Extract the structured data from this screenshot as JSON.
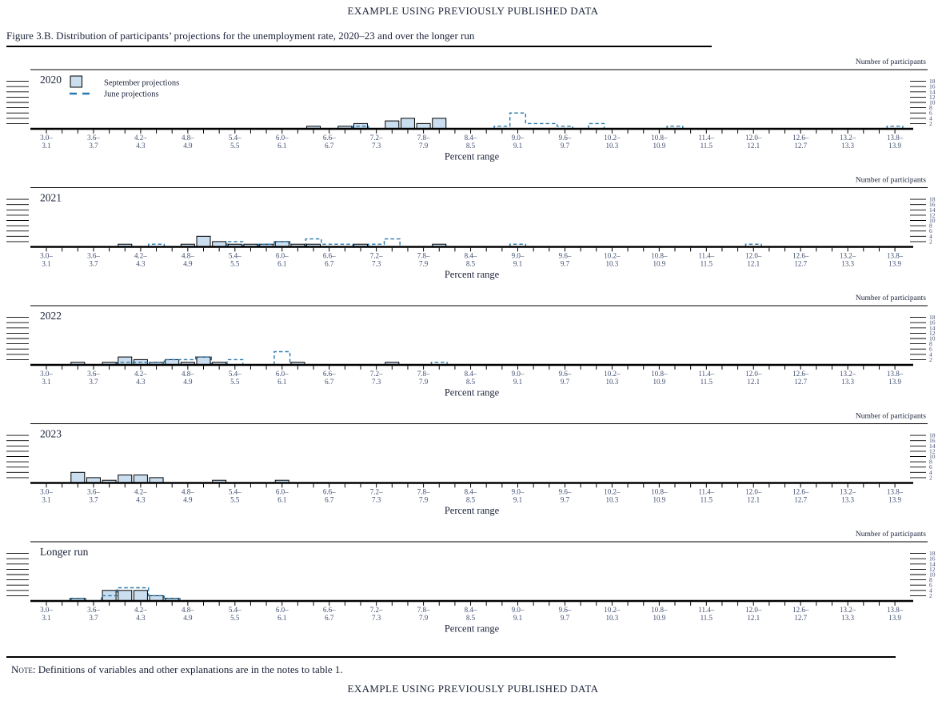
{
  "header": {
    "title": "EXAMPLE USING PREVIOUSLY PUBLISHED DATA"
  },
  "figure": {
    "caption": "Figure 3.B. Distribution of participants’ projections for the unemployment rate, 2020–23 and over the longer run"
  },
  "note": {
    "label": "Note:",
    "text": "Definitions of variables and other explanations are in the notes to table 1."
  },
  "footer": {
    "title": "EXAMPLE USING PREVIOUSLY PUBLISHED DATA"
  },
  "chart_data": {
    "type": "bar",
    "kind": "binned-distribution-histogram-panels",
    "title": "Distribution of participants’ projections for the unemployment rate, 2020–23 and over the longer run",
    "xlabel": "Percent range",
    "y_axis_label": "Number of participants",
    "bin_width": 0.2,
    "x_first_bin_start": 3.0,
    "n_bins": 55,
    "x_tick_labels": [
      [
        "3.0–",
        "3.1"
      ],
      [
        "3.6–",
        "3.7"
      ],
      [
        "4.2–",
        "4.3"
      ],
      [
        "4.8–",
        "4.9"
      ],
      [
        "5.4–",
        "5.5"
      ],
      [
        "6.0–",
        "6.1"
      ],
      [
        "6.6–",
        "6.7"
      ],
      [
        "7.2–",
        "7.3"
      ],
      [
        "7.8–",
        "7.9"
      ],
      [
        "8.4–",
        "8.5"
      ],
      [
        "9.0–",
        "9.1"
      ],
      [
        "9.6–",
        "9.7"
      ],
      [
        "10.2–",
        "10.3"
      ],
      [
        "10.8–",
        "10.9"
      ],
      [
        "11.4–",
        "11.5"
      ],
      [
        "12.0–",
        "12.1"
      ],
      [
        "12.6–",
        "12.7"
      ],
      [
        "13.2–",
        "13.3"
      ],
      [
        "13.8–",
        "13.9"
      ]
    ],
    "y_ticks": [
      2,
      4,
      6,
      8,
      10,
      12,
      14,
      16,
      18
    ],
    "ylim": [
      0,
      19
    ],
    "grid": false,
    "legend": {
      "position": "top-left-inside-first-panel",
      "september_label": "September projections",
      "june_label": "June projections"
    },
    "colors": {
      "bar_fill": "#cadeef",
      "bar_stroke": "#000000",
      "june_line": "#2878ad",
      "axis": "#000000",
      "text_dark": "#1a2238",
      "text_axis": "#3e4c6e"
    },
    "panels": [
      {
        "label": "2020",
        "september": {
          "6.4": 1,
          "6.8": 1,
          "7.0": 2,
          "7.4": 3,
          "7.6": 4,
          "7.8": 2,
          "8.0": 4
        },
        "june": {
          "7.0": 1,
          "8.8": 1,
          "9.0": 6,
          "9.2": 2,
          "9.4": 2,
          "9.6": 1,
          "10.0": 2,
          "11.0": 1,
          "13.8": 1
        }
      },
      {
        "label": "2021",
        "september": {
          "4.0": 1,
          "4.8": 1,
          "5.0": 4,
          "5.2": 2,
          "5.4": 1,
          "5.6": 1,
          "5.8": 1,
          "6.0": 2,
          "6.2": 1,
          "6.4": 1,
          "7.0": 1,
          "8.0": 1
        },
        "june": {
          "4.4": 1,
          "5.4": 2,
          "5.8": 1,
          "6.0": 2,
          "6.4": 3,
          "6.6": 1,
          "6.8": 1,
          "7.2": 1,
          "7.4": 3,
          "9.0": 1,
          "12.0": 1
        }
      },
      {
        "label": "2022",
        "september": {
          "3.4": 1,
          "3.8": 1,
          "4.0": 3,
          "4.2": 2,
          "4.4": 1,
          "4.6": 2,
          "4.8": 1,
          "5.0": 3,
          "5.2": 1,
          "6.2": 1,
          "7.4": 1
        },
        "june": {
          "4.0": 1,
          "4.2": 1,
          "4.4": 1,
          "4.6": 2,
          "4.8": 2,
          "5.0": 3,
          "5.4": 2,
          "6.0": 5,
          "8.0": 1
        }
      },
      {
        "label": "2023",
        "september": {
          "3.4": 4,
          "3.6": 2,
          "3.8": 1,
          "4.0": 3,
          "4.2": 3,
          "4.4": 2,
          "5.2": 1,
          "6.0": 1
        },
        "june": {}
      },
      {
        "label": "Longer run",
        "september": {
          "3.4": 1,
          "3.8": 4,
          "4.0": 4,
          "4.2": 4,
          "4.4": 2,
          "4.6": 1
        },
        "june": {
          "3.4": 1,
          "3.8": 2,
          "4.0": 5,
          "4.2": 5,
          "4.4": 2,
          "4.6": 1
        }
      }
    ]
  }
}
